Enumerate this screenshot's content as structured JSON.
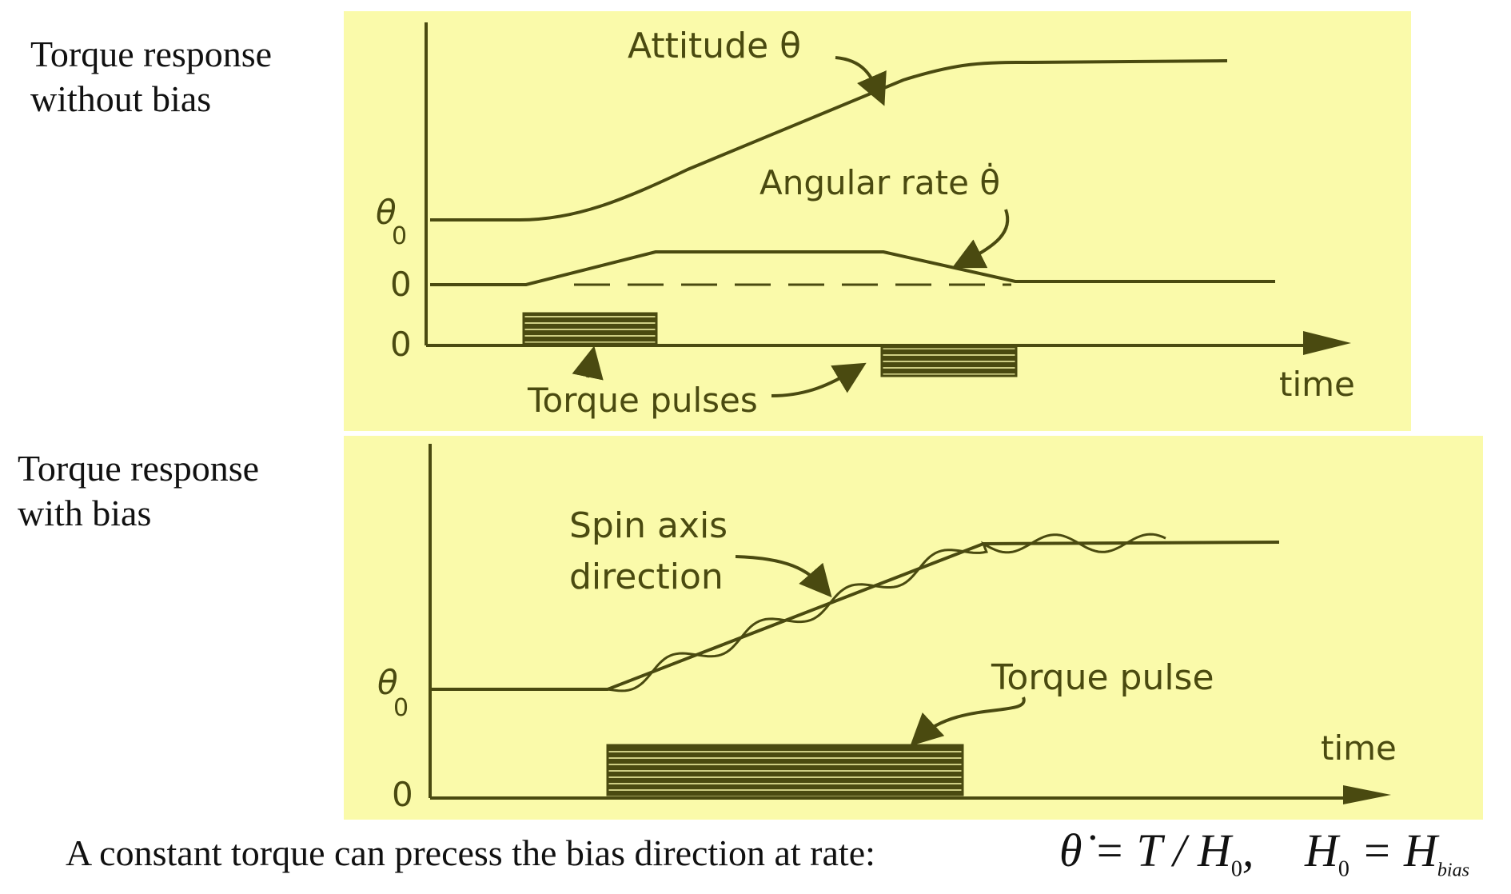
{
  "top": {
    "side_label_line1": "Torque response",
    "side_label_line2": "without bias",
    "attitude_label": "Attitude θ",
    "rate_label": "Angular rate θ̇",
    "theta0_label": "θ",
    "theta0_sub": "0",
    "zero_rate_label": "0",
    "zero_torque_label": "0",
    "pulses_label": "Torque pulses",
    "time_label": "time"
  },
  "bottom": {
    "side_label_line1": "Torque response",
    "side_label_line2": "with bias",
    "spin_label_line1": "Spin axis",
    "spin_label_line2": "direction",
    "pulse_label": "Torque pulse",
    "theta0_label": "θ",
    "theta0_sub": "0",
    "zero_label": "0",
    "time_label": "time"
  },
  "caption": "A constant torque can precess the bias direction at rate:",
  "equation": {
    "lhs": "θ̇ = T / H",
    "lhs_sub": "0",
    "comma": ",",
    "rhs": "H",
    "rhs_sub": "0",
    "rhs_eq": "= H",
    "rhs_sub2": "bias"
  },
  "colors": {
    "panel": "#fafaaa",
    "ink": "#4a4a10"
  }
}
